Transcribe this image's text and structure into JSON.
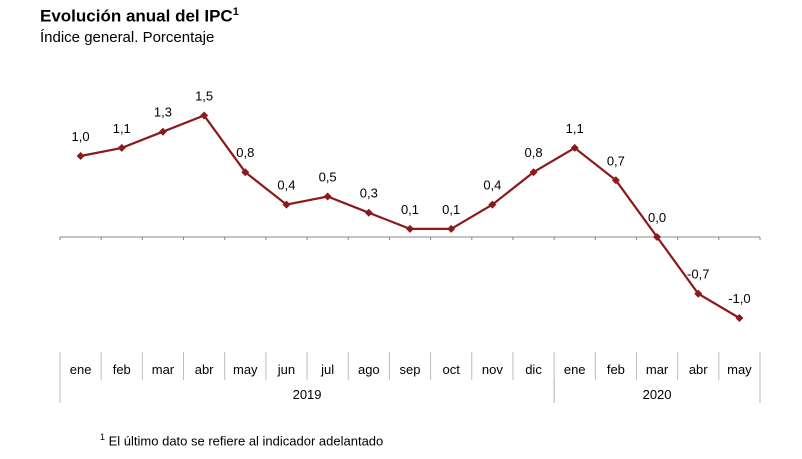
{
  "title": "Evolución anual del IPC",
  "title_sup": "1",
  "subtitle": "Índice general. Porcentaje",
  "footnote_sup": "1",
  "footnote": "El último dato se refiere al indicador adelantado",
  "chart_data": {
    "type": "line",
    "categories": [
      "ene",
      "feb",
      "mar",
      "abr",
      "may",
      "jun",
      "jul",
      "ago",
      "sep",
      "oct",
      "nov",
      "dic",
      "ene",
      "feb",
      "mar",
      "abr",
      "may"
    ],
    "years": [
      {
        "label": "2019",
        "start": 0,
        "end": 11
      },
      {
        "label": "2020",
        "start": 12,
        "end": 16
      }
    ],
    "series": [
      {
        "values": [
          1.0,
          1.1,
          1.3,
          1.5,
          0.8,
          0.4,
          0.5,
          0.3,
          0.1,
          0.1,
          0.4,
          0.8,
          1.1,
          0.7,
          0.0,
          -0.7,
          -1.0
        ]
      }
    ],
    "data_labels": [
      "1,0",
      "1,1",
      "1,3",
      "1,5",
      "0,8",
      "0,4",
      "0,5",
      "0,3",
      "0,1",
      "0,1",
      "0,4",
      "0,8",
      "1,1",
      "0,7",
      "0,0",
      "-0,7",
      "-1,0"
    ],
    "color": "#8b1a1a",
    "grid": false
  }
}
